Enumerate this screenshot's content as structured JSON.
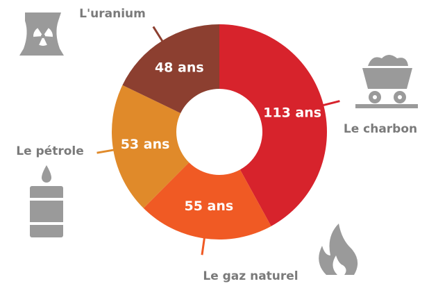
{
  "chart_data": {
    "type": "donut",
    "categories": [
      "Le charbon",
      "Le gaz naturel",
      "Le pétrole",
      "L'uranium"
    ],
    "values": [
      113,
      55,
      53,
      48
    ],
    "value_labels": [
      "113 ans",
      "55 ans",
      "53 ans",
      "48 ans"
    ],
    "colors": [
      "#d7232c",
      "#f05a24",
      "#e08a2a",
      "#8c3f30"
    ]
  }
}
